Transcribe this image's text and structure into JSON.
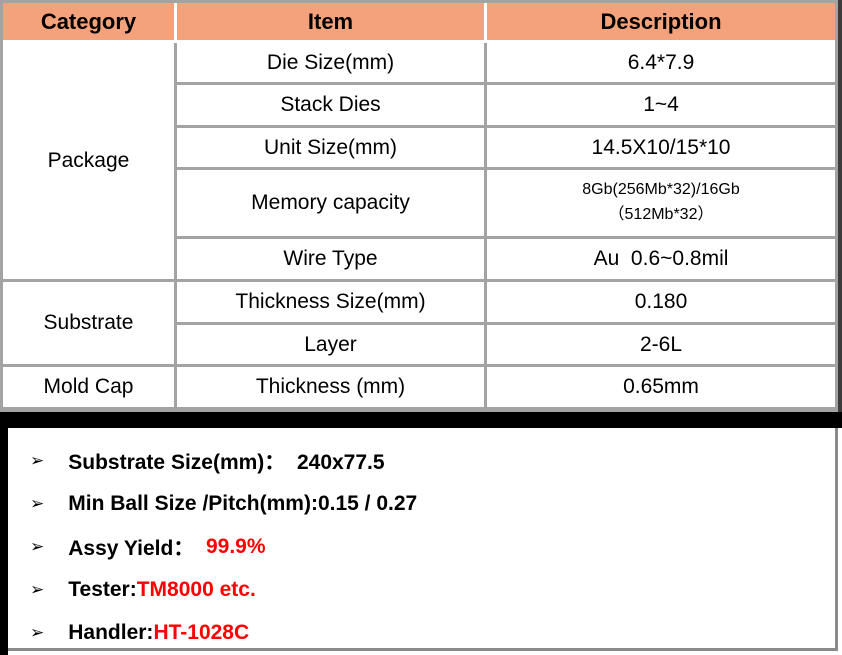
{
  "colors": {
    "header_bg": "#F4A27C",
    "grid_border": "#A3A3A3",
    "dark_edge": "#3C3C3C",
    "frame_black": "#000000",
    "note_red": "#FF0000",
    "text": "#000000"
  },
  "table": {
    "headers": [
      "Category",
      "Item",
      "Description"
    ],
    "groups": [
      {
        "category": "Package",
        "rows": [
          {
            "item": "Die Size(mm)",
            "desc": "6.4*7.9"
          },
          {
            "item": "Stack Dies",
            "desc": "1~4"
          },
          {
            "item": "Unit Size(mm)",
            "desc": "14.5X10/15*10"
          },
          {
            "item": "Memory capacity",
            "desc": "8Gb(256Mb*32)/16Gb\n（512Mb*32）"
          },
          {
            "item": "Wire Type",
            "desc": "Au  0.6~0.8mil"
          }
        ]
      },
      {
        "category": "Substrate",
        "rows": [
          {
            "item": "Thickness Size(mm)",
            "desc": "0.180"
          },
          {
            "item": "Layer",
            "desc": "2-6L"
          }
        ]
      },
      {
        "category": "Mold Cap",
        "rows": [
          {
            "item": "Thickness (mm)",
            "desc": "0.65mm"
          }
        ]
      }
    ]
  },
  "notes": {
    "bullet": "➢",
    "items": [
      {
        "segments": [
          {
            "text": "Substrate Size(mm)：  240x77.5",
            "color": "black"
          }
        ]
      },
      {
        "segments": [
          {
            "text": "Min Ball Size /Pitch(mm):0.15 / 0.27",
            "color": "black"
          }
        ]
      },
      {
        "segments": [
          {
            "text": "Assy Yield：  ",
            "color": "black"
          },
          {
            "text": "99.9%",
            "color": "red"
          }
        ]
      },
      {
        "segments": [
          {
            "text": "Tester:",
            "color": "black"
          },
          {
            "text": "TM8000 etc.",
            "color": "red"
          }
        ]
      },
      {
        "segments": [
          {
            "text": "Handler:",
            "color": "black"
          },
          {
            "text": "HT-1028C",
            "color": "red"
          }
        ]
      }
    ]
  }
}
